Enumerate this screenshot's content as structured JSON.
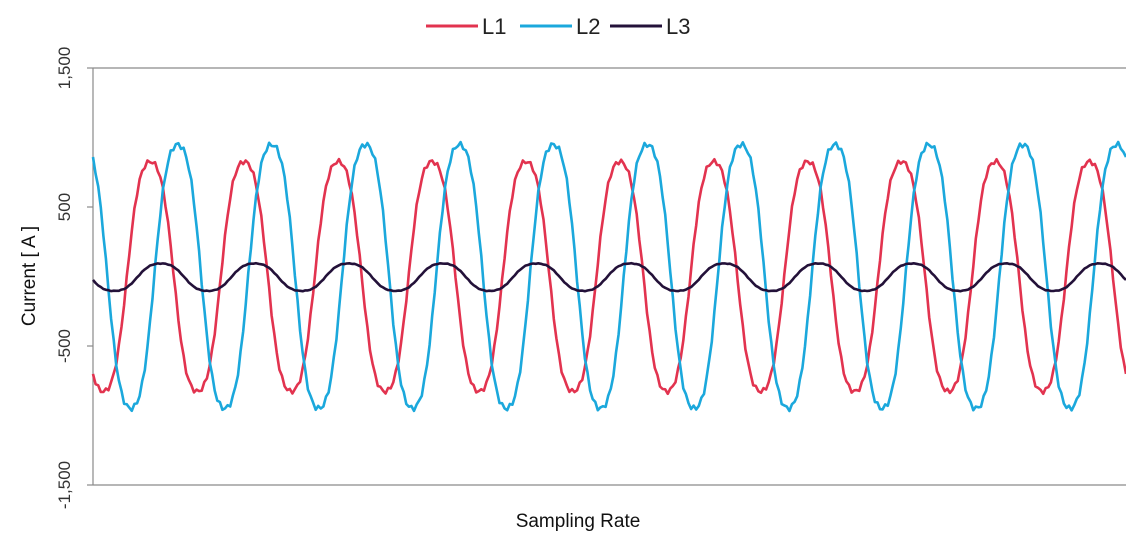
{
  "chart_data": {
    "type": "line",
    "title": "",
    "xlabel": "Sampling Rate",
    "ylabel": "Current [ A ]",
    "ylim": [
      -1500,
      1500
    ],
    "yticks": [
      {
        "value": 1500,
        "label": "1,500"
      },
      {
        "value": 500,
        "label": "500"
      },
      {
        "value": -500,
        "label": "-500"
      },
      {
        "value": -1500,
        "label": "-1,500"
      }
    ],
    "grid": false,
    "legend_position": "top-center",
    "x_samples": 400,
    "cycles": 11,
    "series": [
      {
        "name": "L1",
        "color": "#e2334f",
        "amplitude": 880,
        "phase_deg": -130,
        "offset": 0
      },
      {
        "name": "L2",
        "color": "#1ba8dc",
        "amplitude": 1010,
        "phase_deg": 125,
        "offset": 0
      },
      {
        "name": "L3",
        "color": "#231139",
        "amplitude": 105,
        "phase_deg": 190,
        "offset": -5
      }
    ]
  }
}
